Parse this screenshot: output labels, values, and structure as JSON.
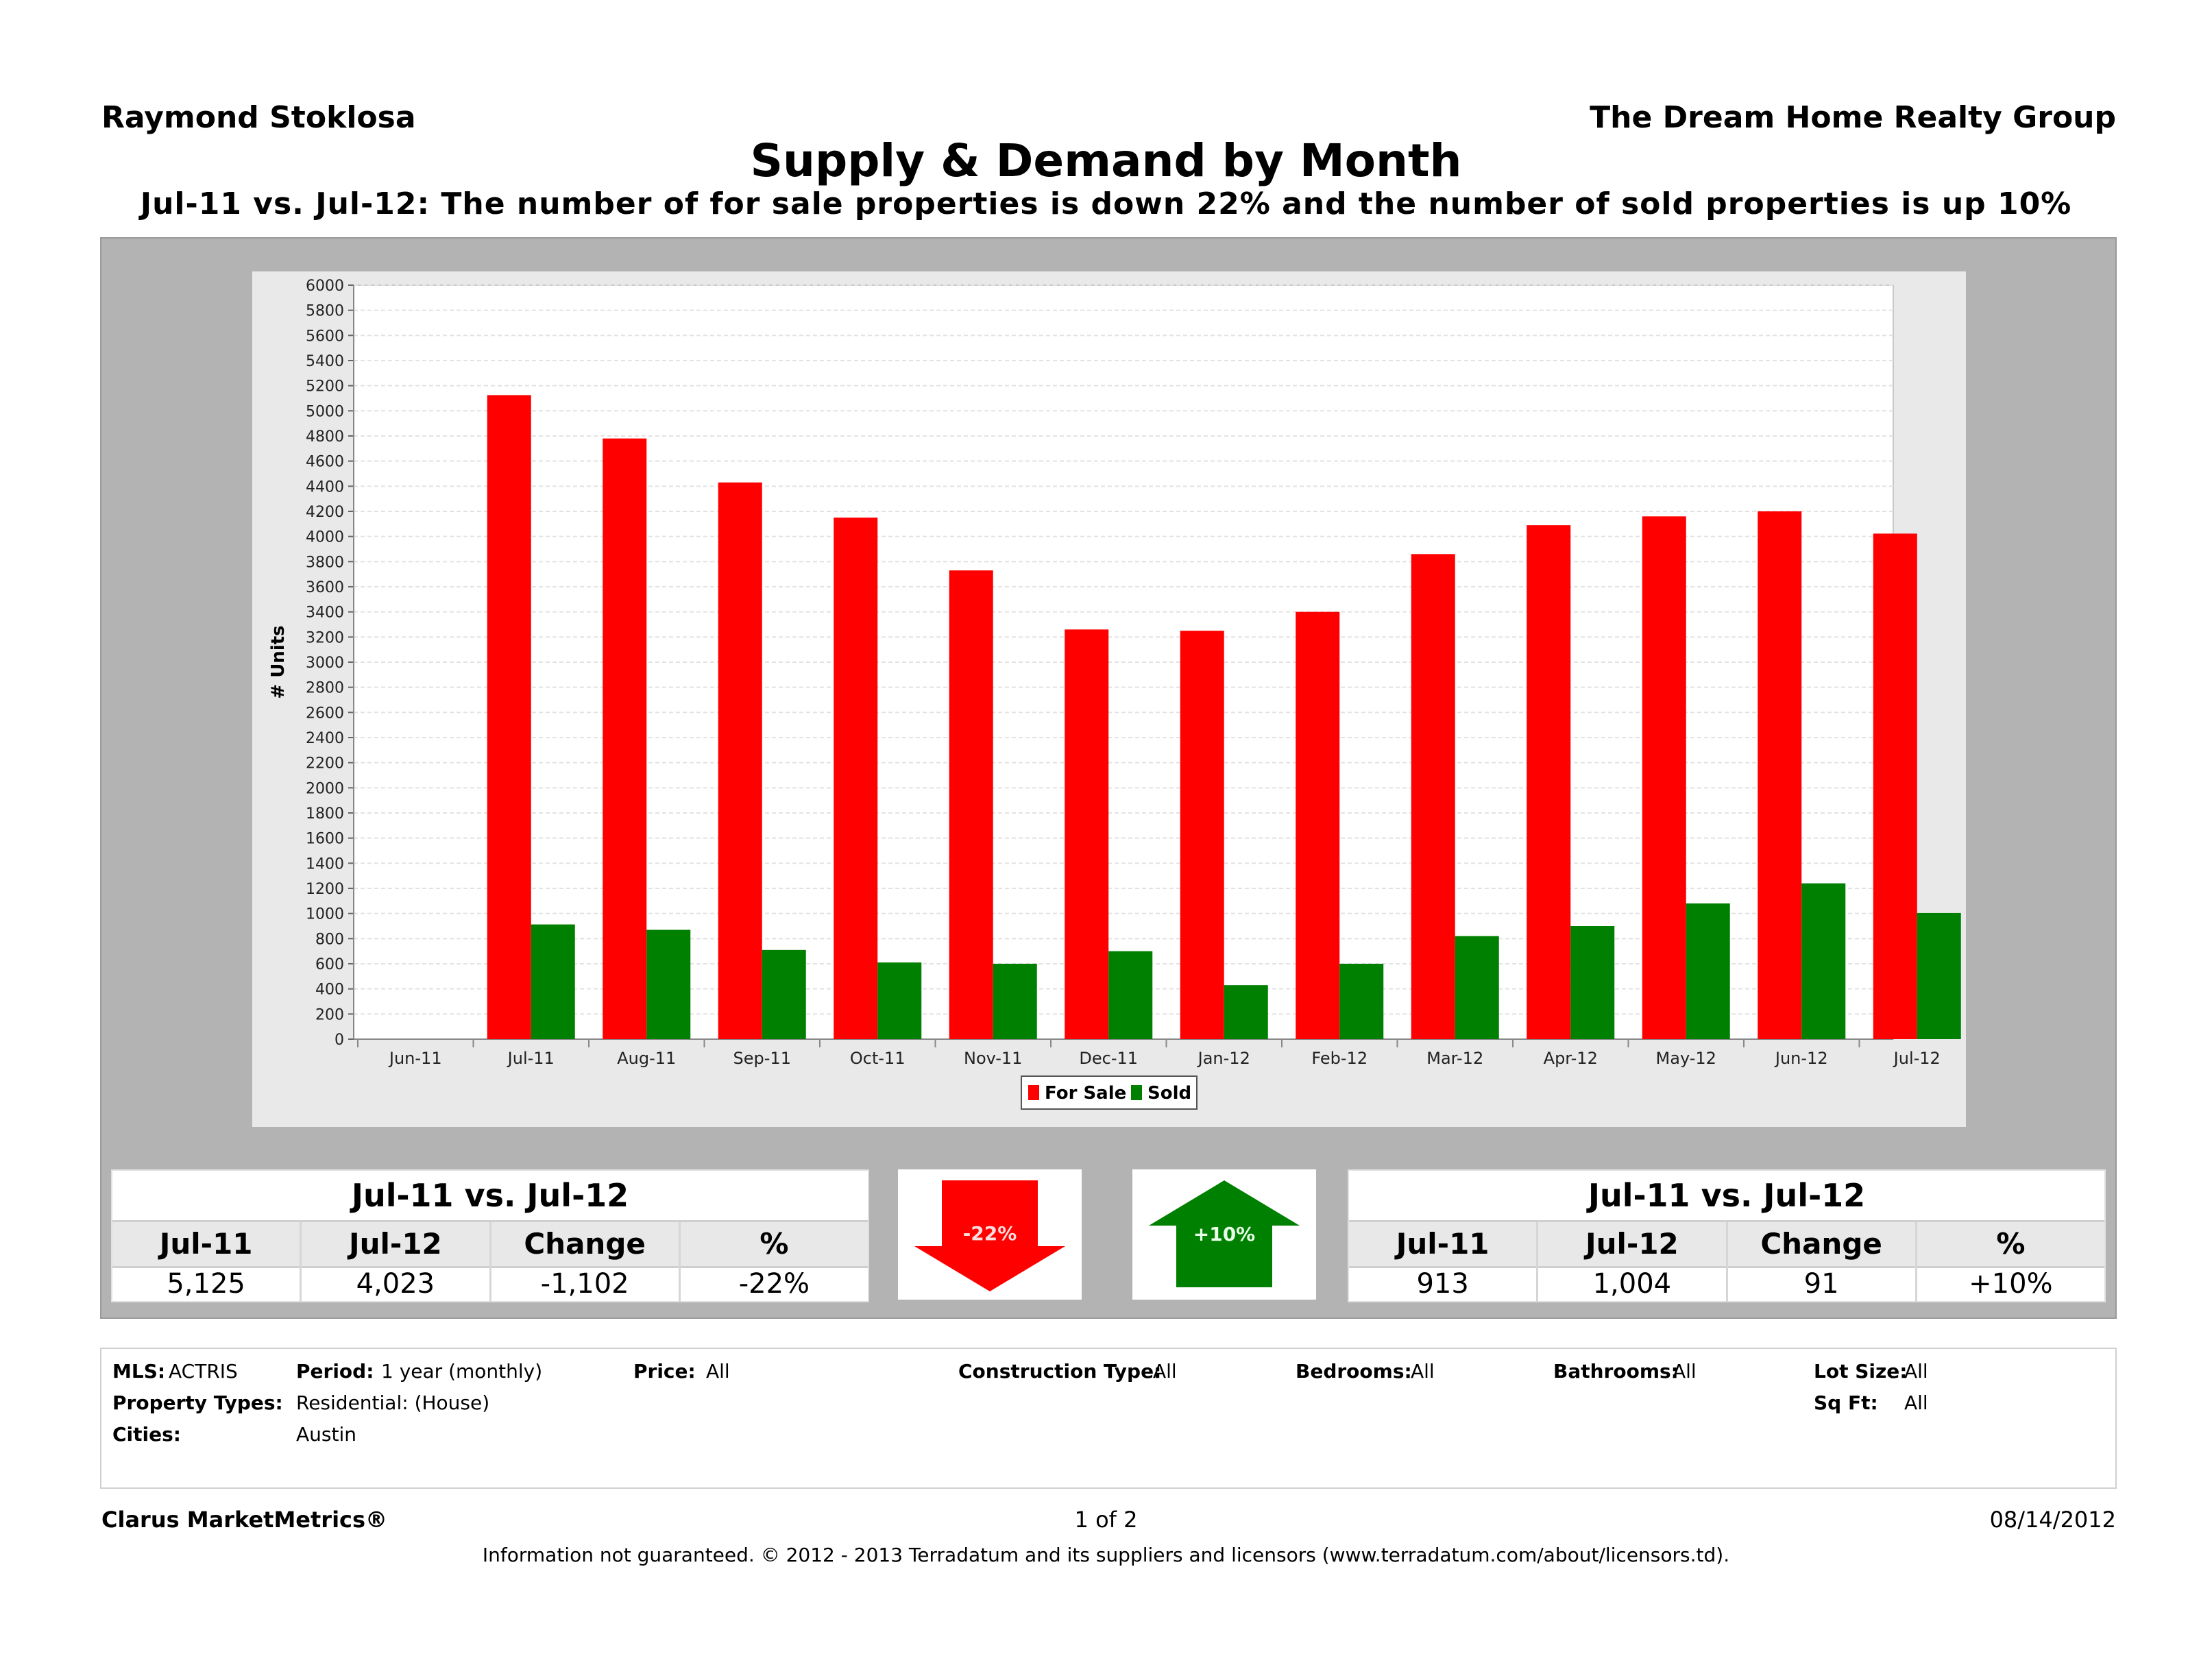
{
  "header": {
    "agent": "Raymond Stoklosa",
    "company": "The Dream Home Realty Group",
    "title": "Supply & Demand by Month",
    "subtitle": "Jul-11 vs. Jul-12:  The number of for sale properties is down 22% and the number of sold properties is up 10%"
  },
  "chart_data": {
    "type": "bar",
    "ylabel": "# Units",
    "ylim": [
      0,
      6000
    ],
    "ytick_step": 200,
    "grid": true,
    "legend_position": "bottom-center",
    "categories": [
      "Jun-11",
      "Jul-11",
      "Aug-11",
      "Sep-11",
      "Oct-11",
      "Nov-11",
      "Dec-11",
      "Jan-12",
      "Feb-12",
      "Mar-12",
      "Apr-12",
      "May-12",
      "Jun-12",
      "Jul-12"
    ],
    "series": [
      {
        "name": "For Sale",
        "color": "#ff0000",
        "values": [
          null,
          5125,
          4780,
          4430,
          4150,
          3730,
          3260,
          3250,
          3400,
          3860,
          4090,
          4160,
          4200,
          4023
        ]
      },
      {
        "name": "Sold",
        "color": "#008000",
        "values": [
          null,
          913,
          870,
          710,
          610,
          600,
          700,
          430,
          600,
          820,
          900,
          1080,
          1240,
          1004
        ]
      }
    ]
  },
  "for_sale_table": {
    "title": "Jul-11 vs. Jul-12",
    "headers": [
      "Jul-11",
      "Jul-12",
      "Change",
      "%"
    ],
    "values": [
      "5,125",
      "4,023",
      "-1,102",
      "-22%"
    ]
  },
  "sold_table": {
    "title": "Jul-11 vs. Jul-12",
    "headers": [
      "Jul-11",
      "Jul-12",
      "Change",
      "%"
    ],
    "values": [
      "913",
      "1,004",
      "91",
      "+10%"
    ]
  },
  "arrows": {
    "down": {
      "label": "-22%",
      "color": "#ff0000"
    },
    "up": {
      "label": "+10%",
      "color": "#008000"
    }
  },
  "filters": {
    "mls_label": "MLS:",
    "mls_value": "ACTRIS",
    "period_label": "Period:",
    "period_value": "1 year (monthly)",
    "price_label": "Price:",
    "price_value": "All",
    "construction_label": "Construction Type:",
    "construction_value": "All",
    "bedrooms_label": "Bedrooms:",
    "bedrooms_value": "All",
    "bathrooms_label": "Bathrooms:",
    "bathrooms_value": "All",
    "lotsize_label": "Lot Size:",
    "lotsize_value": "All",
    "property_types_label": "Property Types:",
    "property_types_value": "Residential: (House)",
    "sqft_label": "Sq Ft:",
    "sqft_value": "All",
    "cities_label": "Cities:",
    "cities_value": "Austin"
  },
  "footer": {
    "brand": "Clarus MarketMetrics®",
    "page": "1 of 2",
    "date": "08/14/2012",
    "disclaimer": "Information not guaranteed.  © 2012 - 2013 Terradatum and its suppliers and licensors (www.terradatum.com/about/licensors.td)."
  }
}
